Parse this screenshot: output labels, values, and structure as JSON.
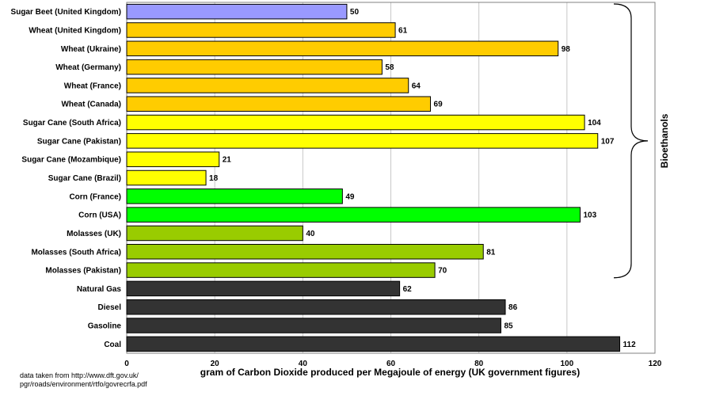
{
  "chart_data": {
    "type": "bar",
    "orientation": "horizontal",
    "categories": [
      "Sugar Beet (United Kingdom)",
      "Wheat (United Kingdom)",
      "Wheat (Ukraine)",
      "Wheat (Germany)",
      "Wheat (France)",
      "Wheat (Canada)",
      "Sugar Cane (South Africa)",
      "Sugar Cane (Pakistan)",
      "Sugar Cane (Mozambique)",
      "Sugar Cane (Brazil)",
      "Corn (France)",
      "Corn (USA)",
      "Molasses (UK)",
      "Molasses (South Africa)",
      "Molasses (Pakistan)",
      "Natural Gas",
      "Diesel",
      "Gasoline",
      "Coal"
    ],
    "values": [
      50,
      61,
      98,
      58,
      64,
      69,
      104,
      107,
      21,
      18,
      49,
      103,
      40,
      81,
      70,
      62,
      86,
      85,
      112
    ],
    "colors": [
      "#9999ff",
      "#ffcc00",
      "#ffcc00",
      "#ffcc00",
      "#ffcc00",
      "#ffcc00",
      "#ffff00",
      "#ffff00",
      "#ffff00",
      "#ffff00",
      "#00ff00",
      "#00ff00",
      "#99cc00",
      "#99cc00",
      "#99cc00",
      "#333333",
      "#333333",
      "#333333",
      "#333333"
    ],
    "xlabel": "gram of Carbon Dioxide produced per Megajoule of energy (UK government figures)",
    "xlim": [
      0,
      120
    ],
    "xticks": [
      "0",
      "20",
      "40",
      "60",
      "80",
      "100",
      "120"
    ],
    "grid": "vertical",
    "group_annotation": {
      "label": "Bioethanols",
      "from_category": 0,
      "to_category": 14
    }
  },
  "source_note": {
    "line1": "data taken from http://www.dft.gov.uk/",
    "line2": "pgr/roads/environment/rtfo/govrecrfa.pdf"
  }
}
